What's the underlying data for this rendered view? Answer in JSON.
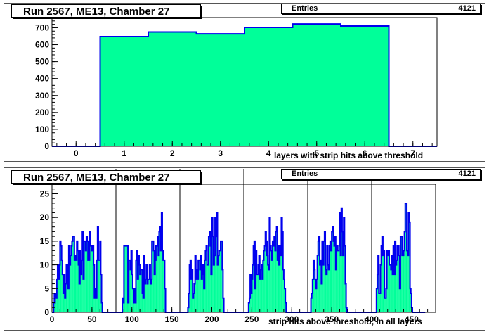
{
  "colors": {
    "fill": "#00ff99",
    "line": "#0000ee",
    "frame": "#000000"
  },
  "chart_data": [
    {
      "type": "bar",
      "title": "Run 2567, ME13, Chamber 27",
      "stats": {
        "label": "Entries",
        "value": "4121"
      },
      "xlabel": "layers with strip hits above threshold",
      "xlim": [
        -0.5,
        7.5
      ],
      "ylim": [
        0,
        760
      ],
      "xticks": [
        0,
        1,
        2,
        3,
        4,
        5,
        6,
        7
      ],
      "yticks": [
        0,
        100,
        200,
        300,
        400,
        500,
        600,
        700
      ],
      "categories": [
        0,
        1,
        2,
        3,
        4,
        5,
        6,
        7
      ],
      "values": [
        0,
        648,
        675,
        664,
        702,
        722,
        710,
        0
      ]
    },
    {
      "type": "bar",
      "title": "Run 2567, ME13, Chamber 27",
      "stats": {
        "label": "Entries",
        "value": "4121"
      },
      "xlabel": "strip hits above threshold, in all layers",
      "xlim": [
        0,
        480
      ],
      "ylim": [
        0,
        27
      ],
      "xticks": [
        0,
        50,
        100,
        150,
        200,
        250,
        300,
        350,
        400,
        450
      ],
      "yticks": [
        0,
        5,
        10,
        15,
        20,
        25
      ],
      "layer_boundaries": [
        80,
        160,
        240,
        320,
        400
      ],
      "bin_width": 1,
      "x_start": 0,
      "values": [
        0,
        0,
        2,
        4,
        3,
        3,
        7,
        10,
        7,
        10,
        15,
        14,
        11,
        8,
        4,
        8,
        3,
        6,
        10,
        10,
        5,
        14,
        10,
        12,
        14,
        15,
        16,
        16,
        11,
        12,
        11,
        15,
        13,
        10,
        6,
        13,
        8,
        11,
        17,
        7,
        15,
        15,
        13,
        16,
        15,
        11,
        11,
        17,
        14,
        14,
        13,
        14,
        10,
        3,
        5,
        3,
        11,
        18,
        11,
        11,
        15,
        8,
        2,
        0,
        0,
        0,
        0,
        0,
        0,
        0,
        0,
        0,
        0,
        0,
        0,
        0,
        0,
        0,
        0,
        0,
        0,
        0,
        0,
        0,
        0,
        0,
        0,
        0,
        3,
        2,
        14,
        14,
        14,
        14,
        14,
        2,
        11,
        11,
        9,
        13,
        8,
        5,
        2,
        5,
        2,
        11,
        13,
        7,
        12,
        10,
        8,
        9,
        9,
        4,
        3,
        12,
        6,
        7,
        10,
        6,
        7,
        7,
        10,
        6,
        7,
        15,
        15,
        13,
        8,
        11,
        14,
        14,
        16,
        12,
        17,
        18,
        13,
        21,
        13,
        11,
        11,
        5,
        0,
        0,
        0,
        0,
        0,
        0,
        0,
        0,
        0,
        0,
        0,
        0,
        0,
        0,
        0,
        0,
        0,
        0,
        0,
        0,
        0,
        0,
        0,
        0,
        0,
        0,
        0,
        0,
        1,
        4,
        10,
        11,
        7,
        9,
        3,
        4,
        6,
        12,
        7,
        9,
        7,
        11,
        11,
        9,
        12,
        7,
        10,
        8,
        5,
        11,
        13,
        14,
        10,
        10,
        16,
        17,
        14,
        8,
        20,
        16,
        10,
        12,
        20,
        16,
        21,
        10,
        12,
        13,
        13,
        15,
        15,
        9,
        3,
        0,
        0,
        0,
        0,
        0,
        0,
        0,
        0,
        0,
        0,
        0,
        0,
        0,
        0,
        0,
        0,
        0,
        0,
        0,
        0,
        0,
        0,
        0,
        0,
        0,
        0,
        0,
        0,
        0,
        0,
        0,
        2,
        3,
        8,
        4,
        7,
        10,
        14,
        15,
        5,
        13,
        8,
        8,
        10,
        12,
        7,
        9,
        10,
        7,
        11,
        13,
        14,
        17,
        15,
        12,
        10,
        9,
        20,
        14,
        13,
        11,
        15,
        14,
        16,
        13,
        17,
        18,
        11,
        14,
        10,
        14,
        12,
        20,
        17,
        9,
        7,
        5,
        2,
        0,
        0,
        0,
        0,
        0,
        0,
        0,
        0,
        0,
        0,
        0,
        0,
        0,
        0,
        0,
        0,
        0,
        0,
        0,
        0,
        0,
        0,
        0,
        0,
        0,
        0,
        0,
        0,
        0,
        0,
        0,
        3,
        4,
        7,
        11,
        9,
        7,
        5,
        7,
        12,
        15,
        16,
        10,
        11,
        6,
        15,
        10,
        15,
        17,
        9,
        8,
        14,
        10,
        9,
        14,
        15,
        13,
        17,
        18,
        15,
        14,
        16,
        9,
        14,
        13,
        13,
        14,
        21,
        12,
        22,
        17,
        12,
        20,
        14,
        6,
        1,
        0,
        0,
        0,
        0,
        0,
        0,
        0,
        0,
        0,
        0,
        0,
        0,
        0,
        0,
        0,
        0,
        0,
        0,
        0,
        0,
        0,
        0,
        0,
        0,
        0,
        0,
        0,
        0,
        0,
        0,
        0,
        0,
        0,
        0,
        0,
        0,
        0,
        5,
        8,
        12,
        4,
        4,
        10,
        14,
        16,
        12,
        13,
        3,
        3,
        5,
        13,
        12,
        13,
        10,
        10,
        9,
        12,
        8,
        14,
        8,
        15,
        10,
        11,
        14,
        14,
        12,
        5,
        16,
        16,
        12,
        12,
        13,
        17,
        23,
        23,
        13,
        12,
        21,
        19,
        5,
        4,
        1,
        0,
        0,
        0,
        0,
        0,
        0,
        0,
        0,
        0,
        0,
        0,
        0,
        0,
        0,
        0,
        0
      ]
    }
  ]
}
